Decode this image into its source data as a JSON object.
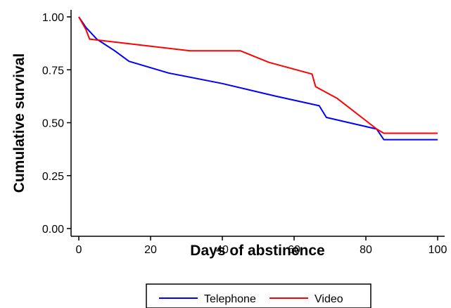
{
  "chart_data": {
    "type": "line",
    "step": true,
    "xlabel": "Days of abstinence",
    "ylabel": "Cumulative survival",
    "xlim": [
      0,
      100
    ],
    "ylim": [
      0,
      1
    ],
    "xticks": [
      0,
      20,
      40,
      60,
      80,
      100
    ],
    "xtick_labels": [
      "0",
      "20",
      "40",
      "60",
      "80",
      "100"
    ],
    "yticks": [
      0,
      0.25,
      0.5,
      0.75,
      1
    ],
    "ytick_labels": [
      "0.00",
      "0.25",
      "0.50",
      "0.75",
      "1.00"
    ],
    "grid": false,
    "legend_position": "bottom",
    "series": [
      {
        "name": "Telephone",
        "color": "#0000ff",
        "x": [
          0,
          2,
          5,
          10,
          14,
          25,
          40,
          55,
          67,
          69,
          83,
          85,
          100
        ],
        "y": [
          1.0,
          0.95,
          0.895,
          0.84,
          0.79,
          0.735,
          0.685,
          0.625,
          0.58,
          0.525,
          0.47,
          0.42,
          0.42
        ]
      },
      {
        "name": "Video",
        "color": "#ff0000",
        "x": [
          0,
          2,
          3,
          31,
          45,
          53,
          65,
          66,
          72,
          80,
          83,
          85,
          100
        ],
        "y": [
          1.0,
          0.94,
          0.895,
          0.84,
          0.84,
          0.785,
          0.73,
          0.67,
          0.615,
          0.51,
          0.47,
          0.45,
          0.45
        ]
      }
    ]
  }
}
